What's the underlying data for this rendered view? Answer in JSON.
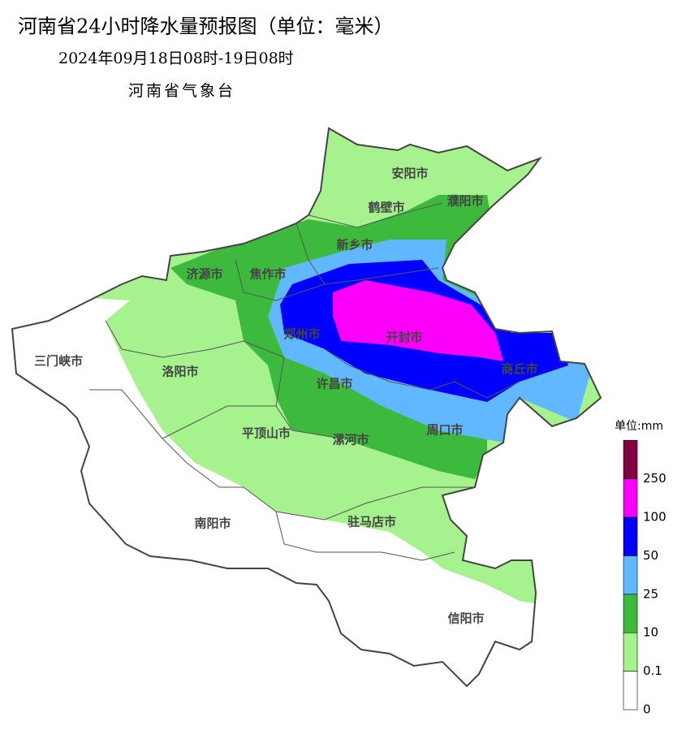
{
  "title": "河南省24小时降水量预报图（单位：毫米）",
  "subtitle": "2024年09月18日08时-19日08时",
  "issuer": "河南省气象台",
  "cities": [
    "安阳市",
    "鹤壁市",
    "濮阳市",
    "新乡市",
    "济源市",
    "焦作市",
    "郑州市",
    "开封市",
    "商丘市",
    "三门峡市",
    "洛阳市",
    "许昌市",
    "平顶山市",
    "漯河市",
    "周口市",
    "南阳市",
    "驻马店市",
    "信阳市"
  ],
  "legend": {
    "title": "单位:mm",
    "levels": [
      0,
      0.1,
      10,
      25,
      50,
      100,
      250
    ],
    "colors": [
      "#ffffff",
      "#a6f28f",
      "#3dba3d",
      "#61b8ff",
      "#0000fe",
      "#fa00fa",
      "#800040"
    ]
  }
}
